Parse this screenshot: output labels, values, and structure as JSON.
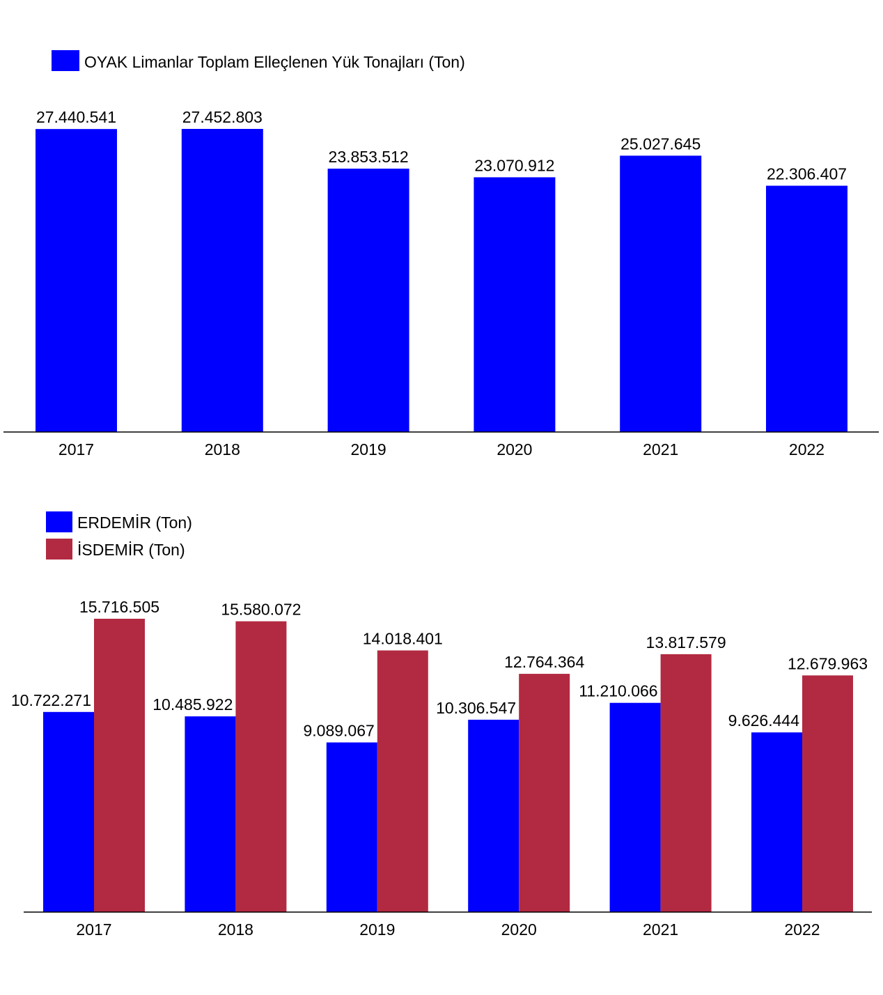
{
  "chart_data": [
    {
      "type": "bar",
      "categories": [
        "2017",
        "2018",
        "2019",
        "2020",
        "2021",
        "2022"
      ],
      "series": [
        {
          "name": "OYAK Limanlar Toplam Elleçlenen Yük Tonajları (Ton)",
          "color": "#0000ff",
          "values": [
            27440541,
            27452803,
            23853512,
            23070912,
            25027645,
            22306407
          ],
          "labels": [
            "27.440.541",
            "27.452.803",
            "23.853.512",
            "23.070.912",
            "25.027.645",
            "22.306.407"
          ]
        }
      ],
      "ylim": [
        0,
        27452803
      ],
      "legend": "top-left",
      "grid": false
    },
    {
      "type": "bar",
      "categories": [
        "2017",
        "2018",
        "2019",
        "2020",
        "2021",
        "2022"
      ],
      "series": [
        {
          "name": "ERDEMİR (Ton)",
          "color": "#0000ff",
          "values": [
            10722271,
            10485922,
            9089067,
            10306547,
            11210066,
            9626444
          ],
          "labels": [
            "10.722.271",
            "10.485.922",
            "9.089.067",
            "10.306.547",
            "11.210.066",
            "9.626.444"
          ]
        },
        {
          "name": "İSDEMİR (Ton)",
          "color": "#b22a41",
          "values": [
            15716505,
            15580072,
            14018401,
            12764364,
            13817579,
            12679963
          ],
          "labels": [
            "15.716.505",
            "15.580.072",
            "14.018.401",
            "12.764.364",
            "13.817.579",
            "12.679.963"
          ]
        }
      ],
      "ylim": [
        0,
        15716505
      ],
      "legend": "top-left",
      "grid": false
    }
  ]
}
